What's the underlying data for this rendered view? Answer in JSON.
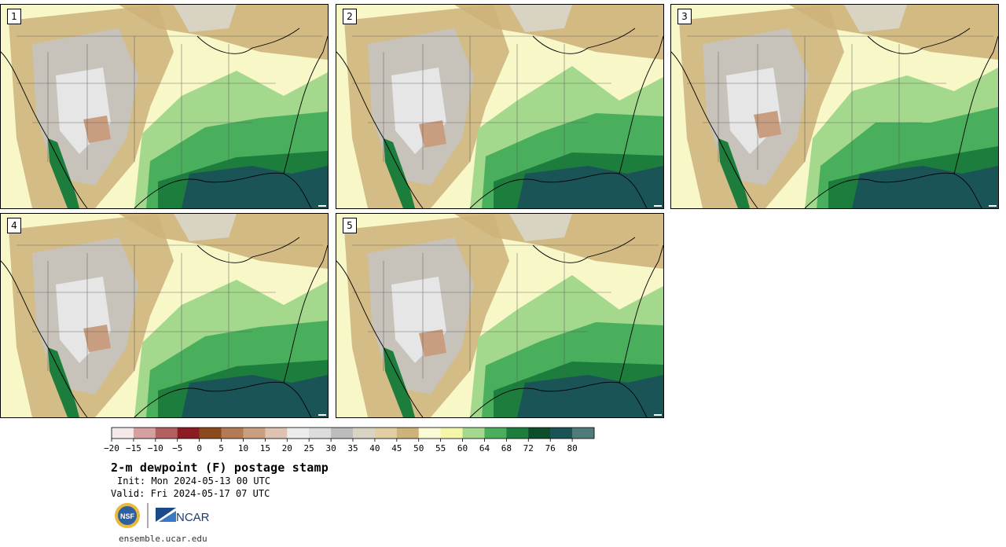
{
  "title": "2-m dewpoint (F) postage stamp",
  "init": "Init: Mon 2024-05-13 00 UTC",
  "valid": "Valid: Fri 2024-05-17 07 UTC",
  "url": "ensemble.ucar.edu",
  "logos": {
    "nsf": "NSF",
    "ncar": "NCAR"
  },
  "panels": [
    {
      "id": "1"
    },
    {
      "id": "2"
    },
    {
      "id": "3"
    },
    {
      "id": "4"
    },
    {
      "id": "5"
    }
  ],
  "colorbar": {
    "tick_labels": [
      "−20",
      "−15",
      "−10",
      "−5",
      "0",
      "5",
      "10",
      "15",
      "20",
      "25",
      "30",
      "35",
      "40",
      "45",
      "50",
      "55",
      "60",
      "64",
      "68",
      "72",
      "76",
      "80"
    ],
    "colors": [
      "#f3e9e8",
      "#d4a0a0",
      "#b25f5f",
      "#8d1c22",
      "#8a4a1c",
      "#b27a55",
      "#c99e80",
      "#dfc2af",
      "#ececec",
      "#dcdcdc",
      "#bdbdbd",
      "#d9d3c3",
      "#e1cfa3",
      "#cdb27a",
      "#fafbd4",
      "#f4f7a8",
      "#a4d88c",
      "#4aaf5d",
      "#1d7d3c",
      "#0d4d29",
      "#1b5457",
      "#4f7b7b"
    ]
  }
}
